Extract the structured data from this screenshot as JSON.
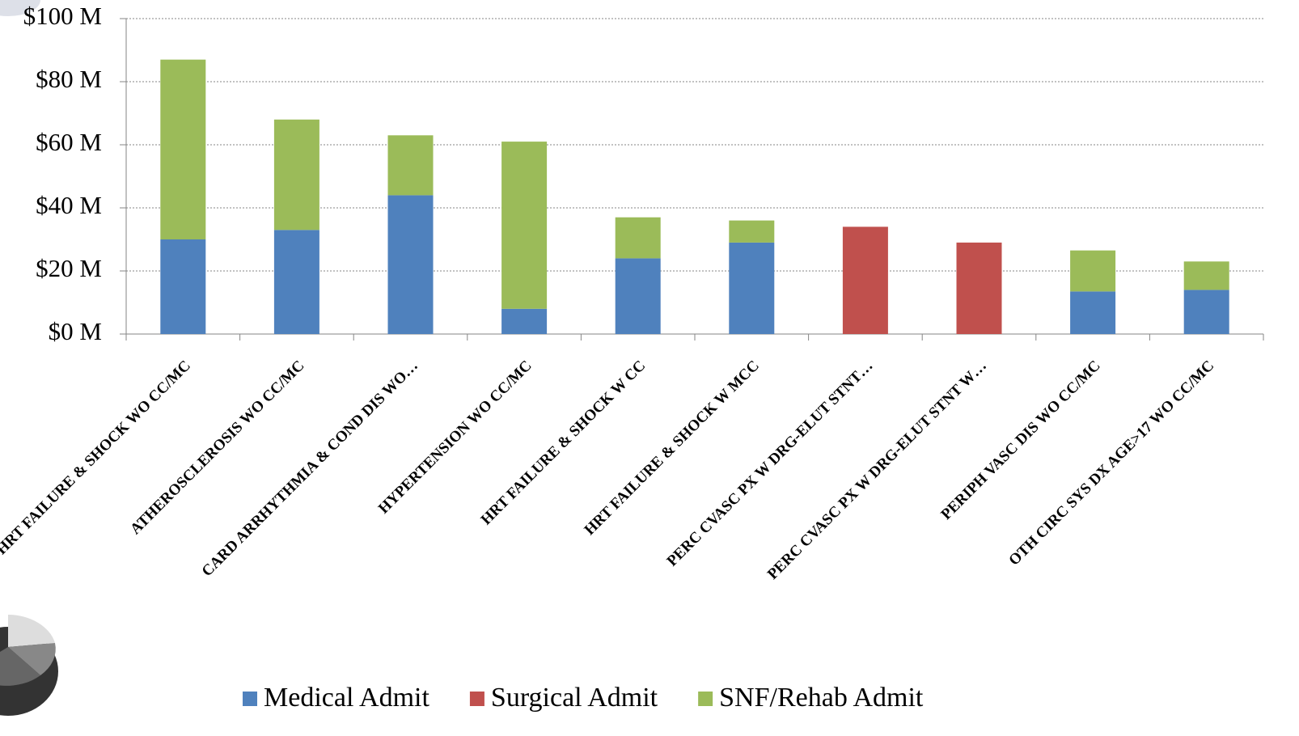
{
  "chart_data": {
    "type": "stacked-bar",
    "categories": [
      "HRT FAILURE & SHOCK WO CC/MC",
      "ATHEROSCLEROSIS WO CC/MC",
      "CARD ARRHYTHMIA & COND DIS WO…",
      "HYPERTENSION WO CC/MC",
      "HRT FAILURE & SHOCK W CC",
      "HRT FAILURE & SHOCK W MCC",
      "PERC CVASC PX W DRG-ELUT STNT…",
      "PERC CVASC PX W DRG-ELUT STNT W…",
      "PERIPH VASC DIS WO CC/MC",
      "OTH CIRC SYS DX AGE>17 WO CC/MC"
    ],
    "series": [
      {
        "name": "Medical Admit",
        "color": "#4f81bd",
        "values": [
          30,
          33,
          44,
          8,
          24,
          29,
          0,
          0,
          13.5,
          14
        ]
      },
      {
        "name": "Surgical Admit",
        "color": "#c0504d",
        "values": [
          0,
          0,
          0,
          0,
          0,
          0,
          34,
          29,
          0,
          0
        ]
      },
      {
        "name": "SNF/Rehab Admit",
        "color": "#9bbb59",
        "values": [
          57,
          35,
          19,
          53,
          13,
          7,
          0,
          0,
          13,
          9
        ]
      }
    ],
    "ylim": [
      0,
      100
    ],
    "yticks": [
      {
        "value": 0,
        "label": "$0 M"
      },
      {
        "value": 20,
        "label": "$20 M"
      },
      {
        "value": 40,
        "label": "$40 M"
      },
      {
        "value": 60,
        "label": "$60 M"
      },
      {
        "value": 80,
        "label": "$80 M"
      },
      {
        "value": 100,
        "label": "$100 M"
      }
    ],
    "grid": true,
    "legend": "bottom"
  }
}
